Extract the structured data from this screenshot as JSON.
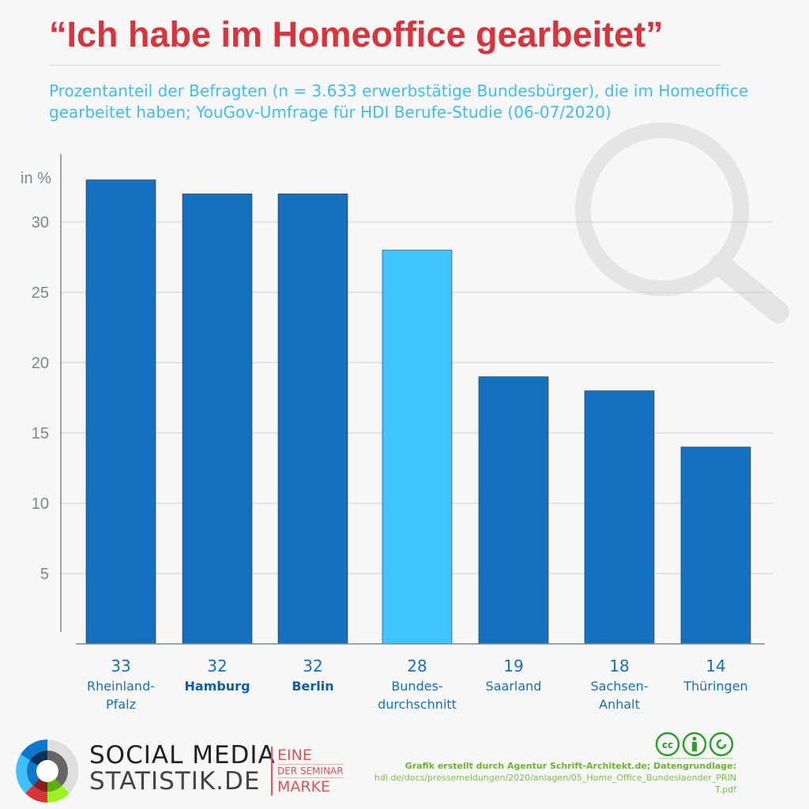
{
  "header": {
    "title": "“Ich habe im Homeoffice gearbeitet”",
    "subtitle": "Prozentanteil der Befragten (n = 3.633 erwerbstätige Bundesbürger), die im Homeoffice gearbeitet haben; YouGov-Umfrage für HDI Berufe-Studie (06-07/2020)"
  },
  "chart_data": {
    "type": "bar",
    "ylabel": "in %",
    "ylim": [
      0,
      34
    ],
    "yticks": [
      5,
      10,
      15,
      20,
      25,
      30
    ],
    "grid": true,
    "categories": [
      [
        "Rheinland-",
        "Pfalz"
      ],
      [
        "Hamburg"
      ],
      [
        "Berlin"
      ],
      [
        "Bundes-",
        "durchschnitt"
      ],
      [
        "Saarland"
      ],
      [
        "Sachsen-",
        "Anhalt"
      ],
      [
        "Thüringen"
      ]
    ],
    "values": [
      33,
      32,
      32,
      28,
      19,
      18,
      14
    ],
    "bold_categories": [
      1,
      2
    ],
    "highlight_index": 3,
    "colors": {
      "bar": "#1570bf",
      "highlight": "#40c4ff",
      "label": "#1570bf",
      "axis": "#7a8a8c"
    }
  },
  "footer": {
    "brand_line1": "SOCIAL MEDIA",
    "brand_line2": "STATISTIK.DE",
    "seminar_top": "EINE",
    "seminar_mid": "DER SEMINAR",
    "seminar_bottom": "MARKE",
    "credit_line": "Grafik erstellt durch Agentur Schrift-Architekt.de; Datengrundlage:",
    "source_line1": "hdi.de/docs/pressemeldungen/2020/anlagen/05_Home_Office_Bundeslaender_PRIN",
    "source_line2": "T.pdf",
    "license_icons": [
      "cc-icon",
      "by-icon",
      "sa-icon"
    ]
  }
}
